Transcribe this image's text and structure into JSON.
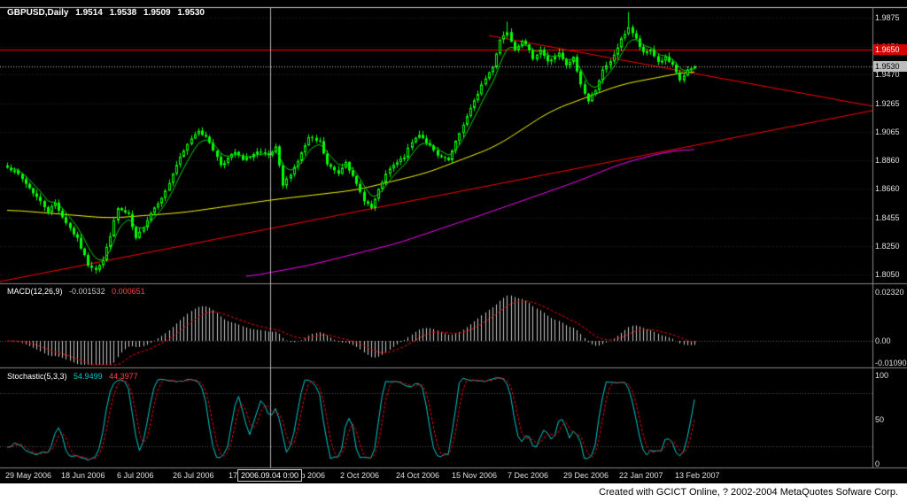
{
  "main_chart": {
    "title": "GBPUSD,Daily",
    "ohlc": {
      "open": "1.9514",
      "high": "1.9538",
      "low": "1.9509",
      "close": "1.9530"
    },
    "current_price_badge": "1.9530",
    "hline_badge": "1.9650"
  },
  "price_axis": {
    "labels": [
      "1.9875",
      "1.9670",
      "1.9470",
      "1.9265",
      "1.9065",
      "1.8860",
      "1.8660",
      "1.8455",
      "1.8250",
      "1.8050"
    ]
  },
  "macd_panel": {
    "title": "MACD(12,26,9)",
    "value_main": "-0.001532",
    "value_signal": "0.000651",
    "axis": [
      "0.02320",
      "0.00",
      "-0.01090"
    ]
  },
  "stoch_panel": {
    "title": "Stochastic(5,3,3)",
    "value_main": "54.9499",
    "value_signal": "44.3977",
    "axis": [
      "100",
      "50",
      "0"
    ]
  },
  "time_axis": {
    "labels": [
      "29 May 2006",
      "18 Jun 2006",
      "6 Jul 2006",
      "26 Jul 2006",
      "17 Aug 2006",
      "8 Sep 2006",
      "2 Oct 2006",
      "24 Oct 2006",
      "15 Nov 2006",
      "7 Dec 2006",
      "29 Dec 2006",
      "22 Jan 2007",
      "13 Feb 2007"
    ],
    "crosshair_date": "2006.09.04 0:00"
  },
  "footer": {
    "credit": "Created with GCICT Online, ? 2002-2004 MetaQuotes Sofware Corp."
  },
  "colors": {
    "background": "#000000",
    "grid": "#262626",
    "panel_border": "#8a8a8a",
    "candle": "#00ff00",
    "ma_green": "#00d800",
    "ma_yellow": "#ffff00",
    "ma_magenta": "#ff00ff",
    "trend_red": "#ff0000",
    "macd_hist": "#c8c8c8",
    "signal_red": "#ff0000",
    "stoch_main": "#00cccc",
    "price_line": "#c0c0c0",
    "crosshair": "#b4b4b4"
  },
  "chart_data": {
    "type": "candlestick",
    "symbol": "GBPUSD",
    "timeframe": "Daily",
    "title": "GBPUSD,Daily 1.9514 1.9538 1.9509 1.9530",
    "price_axis_values": [
      1.9875,
      1.967,
      1.947,
      1.9265,
      1.9065,
      1.886,
      1.866,
      1.8455,
      1.825,
      1.805
    ],
    "ylim": [
      1.8,
      1.995
    ],
    "num_candles": 188,
    "last_ohlc": {
      "open": 1.9514,
      "high": 1.9538,
      "low": 1.9509,
      "close": 1.953
    },
    "current_price": 1.953,
    "horizontal_line_price": 1.965,
    "price_path_anchors": [
      [
        0,
        1.882
      ],
      [
        3,
        1.876
      ],
      [
        8,
        1.86
      ],
      [
        11,
        1.85
      ],
      [
        13,
        1.856
      ],
      [
        15,
        1.846
      ],
      [
        19,
        1.83
      ],
      [
        22,
        1.812
      ],
      [
        24,
        1.809
      ],
      [
        26,
        1.815
      ],
      [
        28,
        1.833
      ],
      [
        30,
        1.852
      ],
      [
        33,
        1.847
      ],
      [
        35,
        1.83
      ],
      [
        39,
        1.849
      ],
      [
        43,
        1.864
      ],
      [
        46,
        1.883
      ],
      [
        50,
        1.902
      ],
      [
        52,
        1.908
      ],
      [
        55,
        1.899
      ],
      [
        58,
        1.883
      ],
      [
        62,
        1.892
      ],
      [
        64,
        1.886
      ],
      [
        68,
        1.892
      ],
      [
        71,
        1.889
      ],
      [
        73,
        1.895
      ],
      [
        75,
        1.868
      ],
      [
        79,
        1.886
      ],
      [
        82,
        1.902
      ],
      [
        85,
        1.899
      ],
      [
        87,
        1.883
      ],
      [
        90,
        1.877
      ],
      [
        92,
        1.886
      ],
      [
        94,
        1.874
      ],
      [
        97,
        1.858
      ],
      [
        99,
        1.852
      ],
      [
        102,
        1.871
      ],
      [
        104,
        1.88
      ],
      [
        108,
        1.889
      ],
      [
        110,
        1.899
      ],
      [
        112,
        1.905
      ],
      [
        115,
        1.896
      ],
      [
        117,
        1.889
      ],
      [
        120,
        1.886
      ],
      [
        122,
        1.899
      ],
      [
        124,
        1.912
      ],
      [
        127,
        1.928
      ],
      [
        129,
        1.94
      ],
      [
        132,
        1.953
      ],
      [
        134,
        1.972
      ],
      [
        136,
        1.978
      ],
      [
        138,
        1.965
      ],
      [
        140,
        1.972
      ],
      [
        143,
        1.959
      ],
      [
        145,
        1.965
      ],
      [
        147,
        1.956
      ],
      [
        150,
        1.962
      ],
      [
        152,
        1.953
      ],
      [
        154,
        1.959
      ],
      [
        156,
        1.94
      ],
      [
        158,
        1.928
      ],
      [
        160,
        1.937
      ],
      [
        162,
        1.95
      ],
      [
        164,
        1.956
      ],
      [
        167,
        1.972
      ],
      [
        169,
        1.981
      ],
      [
        171,
        1.972
      ],
      [
        173,
        1.962
      ],
      [
        175,
        1.965
      ],
      [
        177,
        1.956
      ],
      [
        179,
        1.959
      ],
      [
        181,
        1.953
      ],
      [
        183,
        1.943
      ],
      [
        185,
        1.95
      ],
      [
        187,
        1.953
      ]
    ],
    "wick_spikes": [
      [
        23,
        1.808
      ],
      [
        136,
        1.9847
      ],
      [
        169,
        1.9915
      ]
    ],
    "ma_yellow_anchors": [
      [
        0,
        1.851
      ],
      [
        28,
        1.845
      ],
      [
        48,
        1.849
      ],
      [
        72,
        1.858
      ],
      [
        95,
        1.865
      ],
      [
        114,
        1.877
      ],
      [
        133,
        1.896
      ],
      [
        148,
        1.9215
      ],
      [
        167,
        1.94
      ],
      [
        187,
        1.95
      ]
    ],
    "ma_magenta_anchors": [
      [
        65,
        1.8032
      ],
      [
        82,
        1.8114
      ],
      [
        106,
        1.827
      ],
      [
        131,
        1.849
      ],
      [
        155,
        1.871
      ],
      [
        167,
        1.8837
      ],
      [
        179,
        1.892
      ],
      [
        187,
        1.8944
      ]
    ],
    "ma_green": {
      "type": "ema",
      "period": 6
    },
    "trendlines": {
      "ascending": {
        "p_at_left": 1.8,
        "p_at_right": 1.9215
      },
      "descending": {
        "from_index": 131,
        "from_price": 1.9749,
        "p_at_right": 1.9246
      }
    },
    "crosshair_index": 71.5,
    "macd": {
      "fast": 12,
      "slow": 26,
      "signal": 9,
      "axis_max": 0.0232,
      "axis_min": -0.0109,
      "current_main": -0.001532,
      "current_signal": 0.000651
    },
    "stochastic": {
      "k": 5,
      "slowing": 3,
      "d": 3,
      "levels": [
        20,
        80
      ],
      "current_k": 54.9499,
      "current_d": 44.3977,
      "axis": [
        0,
        50,
        100
      ]
    }
  }
}
